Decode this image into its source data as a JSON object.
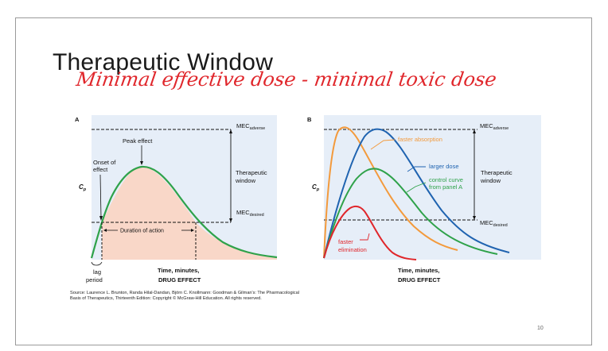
{
  "slide": {
    "title": "Therapeutic Window",
    "handwritten_note": "Minimal effective dose - minimal toxic dose",
    "page_number": "10",
    "source_text": "Source: Laurence L. Brunton, Randa Hilal-Dandan, Björn C. Knollmann: Goodman & Gilman's: The Pharmacological Basis of Therapeutics, Thirteenth Edition: Copyright © McGraw-Hill Education. All rights reserved."
  },
  "panel_a": {
    "letter": "A",
    "y_label": "C",
    "y_label_sub": "p",
    "mec_adverse": "MEC",
    "mec_adverse_sub": "adverse",
    "mec_desired": "MEC",
    "mec_desired_sub": "desired",
    "peak_effect": "Peak effect",
    "onset_line1": "Onset of",
    "onset_line2": "effect",
    "therapeutic_line1": "Therapeutic",
    "therapeutic_line2": "window",
    "duration": "Duration of action",
    "lag_line1": "lag",
    "lag_line2": "period",
    "x_label": "Time, minutes,",
    "drug_effect": "DRUG EFFECT"
  },
  "panel_b": {
    "letter": "B",
    "y_label": "C",
    "y_label_sub": "p",
    "mec_adverse": "MEC",
    "mec_adverse_sub": "adverse",
    "mec_desired": "MEC",
    "mec_desired_sub": "desired",
    "faster_absorption": "faster absorption",
    "larger_dose": "larger dose",
    "control_line1": "control curve",
    "control_line2": "from panel A",
    "faster_elim_line1": "faster",
    "faster_elim_line2": "elimination",
    "therapeutic_line1": "Therapeutic",
    "therapeutic_line2": "window",
    "x_label": "Time, minutes,",
    "drug_effect": "DRUG EFFECT"
  },
  "colors": {
    "plot_bg": "#e6eef8",
    "green": "#2fa24a",
    "orange": "#f39a3c",
    "blue": "#1f63b0",
    "red": "#e0262b",
    "fill_peach": "#f9d7c8",
    "handwriting": "#e0262b"
  }
}
